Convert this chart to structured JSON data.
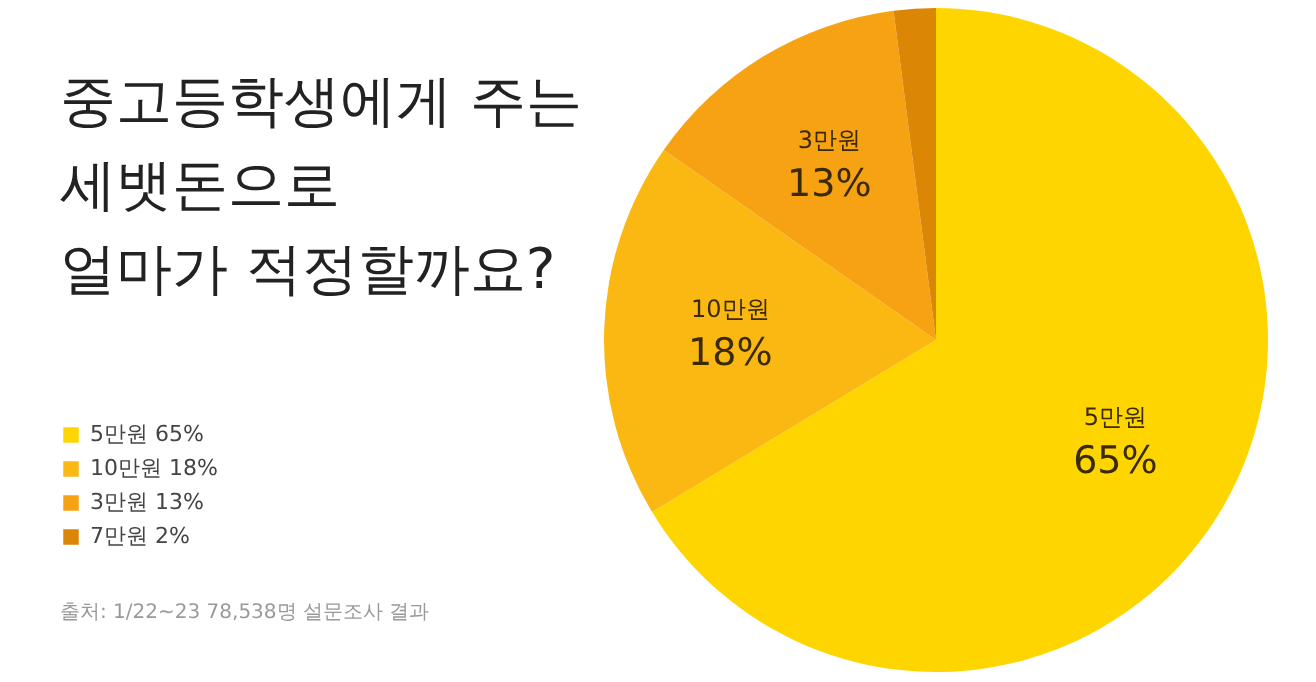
{
  "chart_data": {
    "type": "pie",
    "title": "중고등학생에게 주는\n세뱃돈으로\n얼마가 적정할까요?",
    "categories": [
      "5만원",
      "10만원",
      "3만원",
      "7만원"
    ],
    "values": [
      65,
      18,
      13,
      2
    ],
    "value_labels": [
      "65%",
      "18%",
      "13%",
      "2%"
    ],
    "colors": [
      "#ffd500",
      "#fbb812",
      "#f6a212",
      "#dc8606"
    ],
    "legend": "left",
    "data_labels": true,
    "annotations": [
      "출처: 1/22~23 78,538명 설문조사 결과"
    ]
  }
}
